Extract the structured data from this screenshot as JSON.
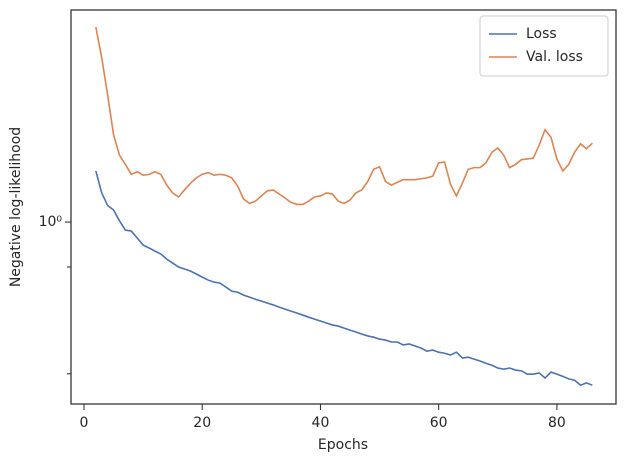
{
  "chart_data": {
    "type": "line",
    "x_label": "Epochs",
    "y_label": "Negative log-likelihood",
    "x": [
      2,
      3,
      4,
      5,
      6,
      7,
      8,
      9,
      10,
      11,
      12,
      13,
      14,
      15,
      16,
      17,
      18,
      19,
      20,
      21,
      22,
      23,
      24,
      25,
      26,
      27,
      28,
      29,
      30,
      31,
      32,
      33,
      34,
      35,
      36,
      37,
      38,
      39,
      40,
      41,
      42,
      43,
      44,
      45,
      46,
      47,
      48,
      49,
      50,
      51,
      52,
      53,
      54,
      55,
      56,
      57,
      58,
      59,
      60,
      61,
      62,
      63,
      64,
      65,
      66,
      67,
      68,
      69,
      70,
      71,
      72,
      73,
      74,
      75,
      76,
      77,
      78,
      79,
      80,
      81,
      82,
      83,
      84,
      85,
      86
    ],
    "series": [
      {
        "name": "Loss",
        "color": "#4c72b0",
        "values": [
          1.5,
          1.26,
          1.14,
          1.1,
          1.01,
          0.938,
          0.931,
          0.881,
          0.833,
          0.814,
          0.794,
          0.776,
          0.745,
          0.722,
          0.7,
          0.689,
          0.678,
          0.662,
          0.646,
          0.631,
          0.621,
          0.616,
          0.597,
          0.578,
          0.573,
          0.56,
          0.551,
          0.542,
          0.534,
          0.526,
          0.518,
          0.509,
          0.501,
          0.493,
          0.486,
          0.478,
          0.47,
          0.463,
          0.456,
          0.449,
          0.442,
          0.438,
          0.431,
          0.424,
          0.418,
          0.411,
          0.405,
          0.401,
          0.395,
          0.392,
          0.386,
          0.386,
          0.377,
          0.38,
          0.374,
          0.368,
          0.359,
          0.362,
          0.356,
          0.353,
          0.348,
          0.356,
          0.34,
          0.342,
          0.337,
          0.332,
          0.326,
          0.321,
          0.314,
          0.311,
          0.314,
          0.309,
          0.307,
          0.299,
          0.299,
          0.302,
          0.29,
          0.304,
          0.299,
          0.294,
          0.288,
          0.285,
          0.274,
          0.279,
          0.274
        ]
      },
      {
        "name": "Val. loss",
        "color": "#dd8452",
        "values": [
          4.7,
          3.68,
          2.74,
          2.0,
          1.7,
          1.58,
          1.46,
          1.49,
          1.45,
          1.46,
          1.49,
          1.46,
          1.34,
          1.26,
          1.22,
          1.29,
          1.36,
          1.42,
          1.46,
          1.48,
          1.45,
          1.46,
          1.45,
          1.42,
          1.33,
          1.2,
          1.16,
          1.18,
          1.23,
          1.28,
          1.29,
          1.25,
          1.21,
          1.17,
          1.15,
          1.15,
          1.18,
          1.22,
          1.23,
          1.26,
          1.25,
          1.18,
          1.16,
          1.19,
          1.26,
          1.29,
          1.38,
          1.52,
          1.55,
          1.38,
          1.34,
          1.37,
          1.4,
          1.4,
          1.4,
          1.41,
          1.42,
          1.44,
          1.6,
          1.61,
          1.35,
          1.23,
          1.36,
          1.52,
          1.54,
          1.54,
          1.6,
          1.74,
          1.8,
          1.7,
          1.54,
          1.58,
          1.64,
          1.65,
          1.66,
          1.84,
          2.08,
          1.96,
          1.65,
          1.5,
          1.58,
          1.74,
          1.86,
          1.79,
          1.87
        ]
      }
    ],
    "xlim": [
      -2.2,
      90
    ],
    "xticks": [
      0,
      20,
      40,
      60,
      80
    ],
    "ylim": [
      0.236,
      5.38
    ],
    "y_log": true,
    "yticks": [
      {
        "value": 1,
        "label": "10⁰"
      }
    ],
    "yticks_minor": [
      0.7,
      0.3
    ],
    "legend": "upper right"
  }
}
